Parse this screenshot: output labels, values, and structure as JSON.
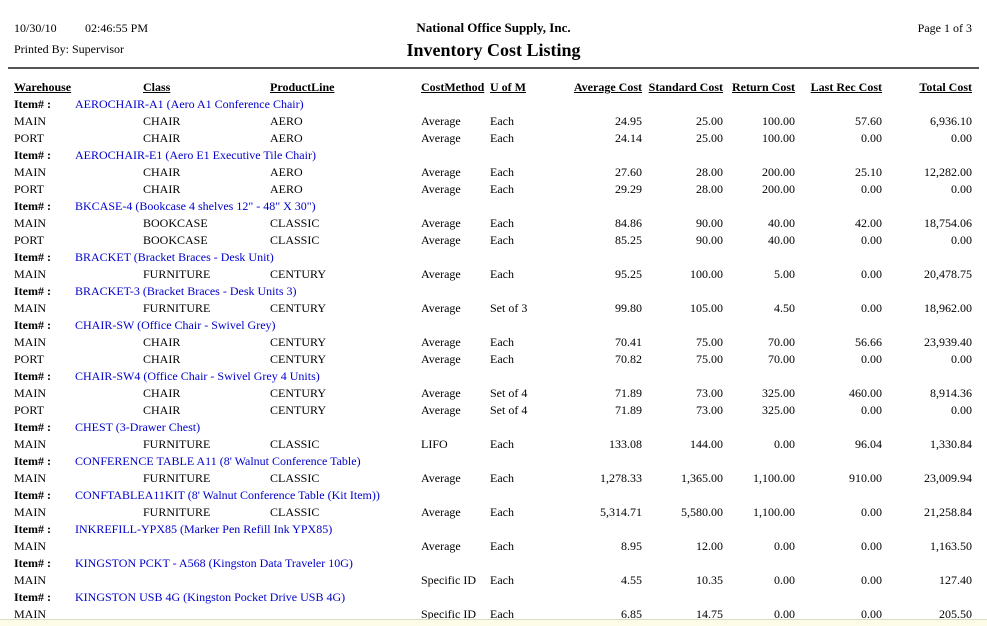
{
  "header": {
    "date": "10/30/10",
    "time": "02:46:55 PM",
    "printed_by": "Printed By: Supervisor",
    "company": "National Office Supply, Inc.",
    "report_title": "Inventory Cost Listing",
    "page": "Page 1 of 3"
  },
  "colors": {
    "item_link_blue": "#0000CC",
    "text": "#000000",
    "bottom_strip": "#FCFCE9"
  },
  "table": {
    "item_label": "Item# :",
    "columns": [
      "Warehouse",
      "Class",
      "ProductLine",
      "CostMethod",
      "U of M",
      "Average Cost",
      "Standard Cost",
      "Return Cost",
      "Last Rec Cost",
      "Total Cost"
    ],
    "groups": [
      {
        "item": "AEROCHAIR-A1 (Aero A1 Conference Chair)",
        "rows": [
          {
            "warehouse": "MAIN",
            "class": "CHAIR",
            "product_line": "AERO",
            "cost_method": "Average",
            "uom": "Each",
            "average_cost": "24.95",
            "standard_cost": "25.00",
            "return_cost": "100.00",
            "last_rec_cost": "57.60",
            "total_cost": "6,936.10"
          },
          {
            "warehouse": "PORT",
            "class": "CHAIR",
            "product_line": "AERO",
            "cost_method": "Average",
            "uom": "Each",
            "average_cost": "24.14",
            "standard_cost": "25.00",
            "return_cost": "100.00",
            "last_rec_cost": "0.00",
            "total_cost": "0.00"
          }
        ]
      },
      {
        "item": "AEROCHAIR-E1 (Aero E1 Executive Tile Chair)",
        "rows": [
          {
            "warehouse": "MAIN",
            "class": "CHAIR",
            "product_line": "AERO",
            "cost_method": "Average",
            "uom": "Each",
            "average_cost": "27.60",
            "standard_cost": "28.00",
            "return_cost": "200.00",
            "last_rec_cost": "25.10",
            "total_cost": "12,282.00"
          },
          {
            "warehouse": "PORT",
            "class": "CHAIR",
            "product_line": "AERO",
            "cost_method": "Average",
            "uom": "Each",
            "average_cost": "29.29",
            "standard_cost": "28.00",
            "return_cost": "200.00",
            "last_rec_cost": "0.00",
            "total_cost": "0.00"
          }
        ]
      },
      {
        "item": "BKCASE-4 (Bookcase 4 shelves 12\" - 48\" X 30\")",
        "rows": [
          {
            "warehouse": "MAIN",
            "class": "BOOKCASE",
            "product_line": "CLASSIC",
            "cost_method": "Average",
            "uom": "Each",
            "average_cost": "84.86",
            "standard_cost": "90.00",
            "return_cost": "40.00",
            "last_rec_cost": "42.00",
            "total_cost": "18,754.06"
          },
          {
            "warehouse": "PORT",
            "class": "BOOKCASE",
            "product_line": "CLASSIC",
            "cost_method": "Average",
            "uom": "Each",
            "average_cost": "85.25",
            "standard_cost": "90.00",
            "return_cost": "40.00",
            "last_rec_cost": "0.00",
            "total_cost": "0.00"
          }
        ]
      },
      {
        "item": "BRACKET (Bracket Braces - Desk Unit)",
        "rows": [
          {
            "warehouse": "MAIN",
            "class": "FURNITURE",
            "product_line": "CENTURY",
            "cost_method": "Average",
            "uom": "Each",
            "average_cost": "95.25",
            "standard_cost": "100.00",
            "return_cost": "5.00",
            "last_rec_cost": "0.00",
            "total_cost": "20,478.75"
          }
        ]
      },
      {
        "item": "BRACKET-3 (Bracket Braces - Desk Units 3)",
        "rows": [
          {
            "warehouse": "MAIN",
            "class": "FURNITURE",
            "product_line": "CENTURY",
            "cost_method": "Average",
            "uom": "Set of 3",
            "average_cost": "99.80",
            "standard_cost": "105.00",
            "return_cost": "4.50",
            "last_rec_cost": "0.00",
            "total_cost": "18,962.00"
          }
        ]
      },
      {
        "item": "CHAIR-SW (Office Chair - Swivel Grey)",
        "rows": [
          {
            "warehouse": "MAIN",
            "class": "CHAIR",
            "product_line": "CENTURY",
            "cost_method": "Average",
            "uom": "Each",
            "average_cost": "70.41",
            "standard_cost": "75.00",
            "return_cost": "70.00",
            "last_rec_cost": "56.66",
            "total_cost": "23,939.40"
          },
          {
            "warehouse": "PORT",
            "class": "CHAIR",
            "product_line": "CENTURY",
            "cost_method": "Average",
            "uom": "Each",
            "average_cost": "70.82",
            "standard_cost": "75.00",
            "return_cost": "70.00",
            "last_rec_cost": "0.00",
            "total_cost": "0.00"
          }
        ]
      },
      {
        "item": "CHAIR-SW4 (Office Chair - Swivel Grey 4 Units)",
        "rows": [
          {
            "warehouse": "MAIN",
            "class": "CHAIR",
            "product_line": "CENTURY",
            "cost_method": "Average",
            "uom": "Set of 4",
            "average_cost": "71.89",
            "standard_cost": "73.00",
            "return_cost": "325.00",
            "last_rec_cost": "460.00",
            "total_cost": "8,914.36"
          },
          {
            "warehouse": "PORT",
            "class": "CHAIR",
            "product_line": "CENTURY",
            "cost_method": "Average",
            "uom": "Set of 4",
            "average_cost": "71.89",
            "standard_cost": "73.00",
            "return_cost": "325.00",
            "last_rec_cost": "0.00",
            "total_cost": "0.00"
          }
        ]
      },
      {
        "item": "CHEST (3-Drawer Chest)",
        "rows": [
          {
            "warehouse": "MAIN",
            "class": "FURNITURE",
            "product_line": "CLASSIC",
            "cost_method": "LIFO",
            "uom": "Each",
            "average_cost": "133.08",
            "standard_cost": "144.00",
            "return_cost": "0.00",
            "last_rec_cost": "96.04",
            "total_cost": "1,330.84"
          }
        ]
      },
      {
        "item": "CONFERENCE TABLE A11 (8' Walnut Conference Table)",
        "rows": [
          {
            "warehouse": "MAIN",
            "class": "FURNITURE",
            "product_line": "CLASSIC",
            "cost_method": "Average",
            "uom": "Each",
            "average_cost": "1,278.33",
            "standard_cost": "1,365.00",
            "return_cost": "1,100.00",
            "last_rec_cost": "910.00",
            "total_cost": "23,009.94"
          }
        ]
      },
      {
        "item": "CONFTABLEA11KIT (8' Walnut Conference Table (Kit Item))",
        "rows": [
          {
            "warehouse": "MAIN",
            "class": "FURNITURE",
            "product_line": "CLASSIC",
            "cost_method": "Average",
            "uom": "Each",
            "average_cost": "5,314.71",
            "standard_cost": "5,580.00",
            "return_cost": "1,100.00",
            "last_rec_cost": "0.00",
            "total_cost": "21,258.84"
          }
        ]
      },
      {
        "item": "INKREFILL-YPX85 (Marker Pen Refill Ink YPX85)",
        "rows": [
          {
            "warehouse": "MAIN",
            "class": "",
            "product_line": "",
            "cost_method": "Average",
            "uom": "Each",
            "average_cost": "8.95",
            "standard_cost": "12.00",
            "return_cost": "0.00",
            "last_rec_cost": "0.00",
            "total_cost": "1,163.50"
          }
        ]
      },
      {
        "item": "KINGSTON PCKT - A568 (Kingston Data Traveler 10G)",
        "rows": [
          {
            "warehouse": "MAIN",
            "class": "",
            "product_line": "",
            "cost_method": "Specific ID",
            "uom": "Each",
            "average_cost": "4.55",
            "standard_cost": "10.35",
            "return_cost": "0.00",
            "last_rec_cost": "0.00",
            "total_cost": "127.40"
          }
        ]
      },
      {
        "item": "KINGSTON USB 4G (Kingston Pocket Drive USB 4G)",
        "rows": [
          {
            "warehouse": "MAIN",
            "class": "",
            "product_line": "",
            "cost_method": "Specific ID",
            "uom": "Each",
            "average_cost": "6.85",
            "standard_cost": "14.75",
            "return_cost": "0.00",
            "last_rec_cost": "0.00",
            "total_cost": "205.50"
          }
        ]
      }
    ]
  }
}
